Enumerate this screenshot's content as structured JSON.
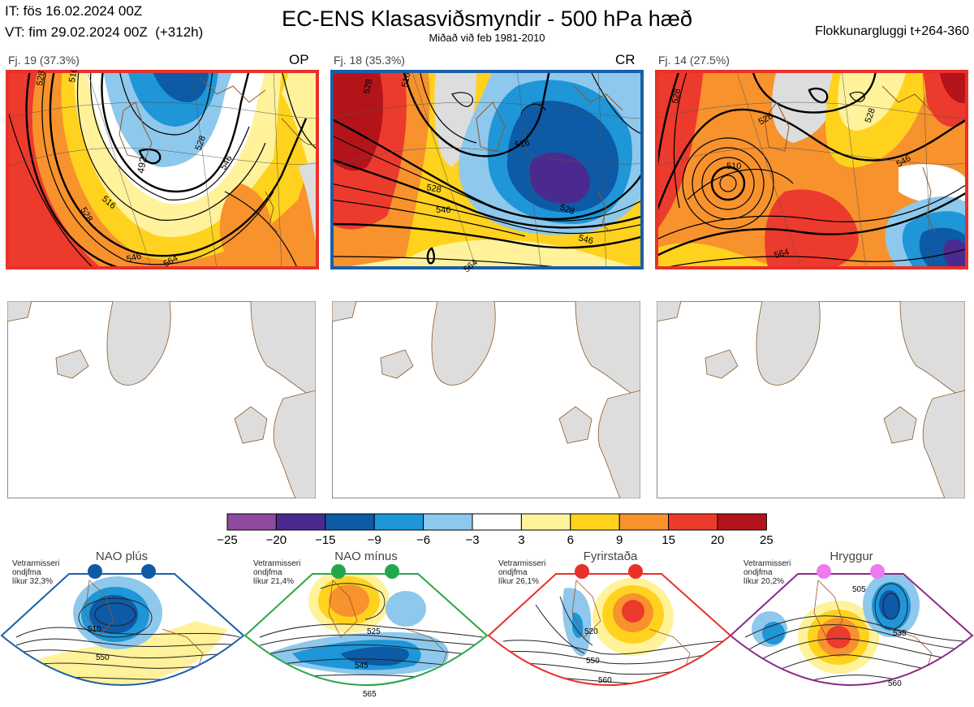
{
  "header": {
    "it_line": "IT: fös 16.02.2024 00Z",
    "vt_line": "VT: fim 29.02.2024 00Z  (+312h)",
    "title": "EC-ENS Klasasviðsmyndir - 500 hPa hæð",
    "subtitle": "Miðað við feb 1981-2010",
    "window": "Flokkunargluggi t+264-360"
  },
  "panels": [
    {
      "label": "Fj. 19 (37.3%)",
      "tag": "OP",
      "frame_color": "#e8312a"
    },
    {
      "label": "Fj. 18 (35.3%)",
      "tag": "CR",
      "frame_color": "#1a5fa8"
    },
    {
      "label": "Fj. 14 (27.5%)",
      "tag": "",
      "frame_color": "#e8312a"
    }
  ],
  "panel_contour_labels": [
    [
      "528",
      "516",
      "492",
      "528",
      "546",
      "516",
      "528",
      "546",
      "564"
    ],
    [
      "528",
      "516",
      "516",
      "528",
      "546",
      "528",
      "546",
      "564"
    ],
    [
      "528",
      "528",
      "510",
      "528",
      "546",
      "564"
    ]
  ],
  "colorbar": {
    "ticks": [
      "−25",
      "−20",
      "−15",
      "−9",
      "−6",
      "−3",
      "3",
      "6",
      "9",
      "15",
      "20",
      "25"
    ],
    "colors": [
      "#8e4a9e",
      "#4b2a8f",
      "#0d5aa6",
      "#1e96d8",
      "#8ec8ec",
      "#ffffff",
      "#fff29a",
      "#ffd21e",
      "#f7922d",
      "#ec3a2c",
      "#b3141a"
    ]
  },
  "regimes": [
    {
      "name": "NAO plús",
      "note": [
        "Vetrarmisseri",
        "ondjfma",
        "líkur 32,3%"
      ],
      "color": "#1a5fa8",
      "dot_color": "#0d5aa6",
      "contour_labels": [
        "510",
        "550"
      ]
    },
    {
      "name": "NAO mínus",
      "note": [
        "Vetrarmisseri",
        "ondjfma",
        "líkur 21,4%"
      ],
      "color": "#2aa64a",
      "dot_color": "#22a84a",
      "contour_labels": [
        "525",
        "545",
        "565"
      ]
    },
    {
      "name": "Fyrirstaða",
      "note": [
        "Vetrarmisseri",
        "ondjfma",
        "líkur 26,1%"
      ],
      "color": "#e8312a",
      "dot_color": "#e8312a",
      "contour_labels": [
        "520",
        "550",
        "560"
      ]
    },
    {
      "name": "Hryggur",
      "note": [
        "Vetrarmisseri",
        "ondjfma",
        "líkur 20,2%"
      ],
      "color": "#8a2a8a",
      "dot_color": "#ee7aee",
      "contour_labels": [
        "505",
        "535",
        "560"
      ]
    }
  ],
  "chart_data": [
    {
      "type": "heatmap",
      "title": "Fj. 19 (37.3%)",
      "variable": "500 hPa hæð",
      "contour_labels": [
        "528",
        "516",
        "492",
        "546",
        "564"
      ]
    },
    {
      "type": "heatmap",
      "title": "Fj. 18 (35.3%)",
      "variable": "500 hPa hæð",
      "contour_labels": [
        "528",
        "516",
        "546",
        "564"
      ]
    },
    {
      "type": "heatmap",
      "title": "Fj. 14 (27.5%)",
      "variable": "500 hPa hæð",
      "contour_labels": [
        "528",
        "510",
        "546",
        "564"
      ]
    }
  ]
}
